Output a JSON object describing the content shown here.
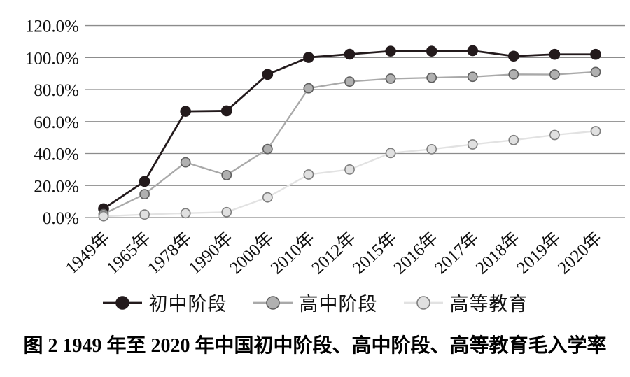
{
  "caption": "图 2  1949 年至 2020 年中国初中阶段、高中阶段、高等教育毛入学率",
  "chart_data": {
    "type": "line",
    "title": "",
    "xlabel": "",
    "ylabel": "",
    "categories": [
      "1949年",
      "1965年",
      "1978年",
      "1990年",
      "2000年",
      "2010年",
      "2012年",
      "2015年",
      "2016年",
      "2017年",
      "2018年",
      "2019年",
      "2020年"
    ],
    "series": [
      {
        "name": "初中阶段",
        "values": [
          5.5,
          22.6,
          66.4,
          66.7,
          89.5,
          100.1,
          102.1,
          104.0,
          104.0,
          104.3,
          100.9,
          102.0,
          102.0
        ],
        "line_color": "#231a1c",
        "marker_fill": "#231a1c",
        "marker_stroke": "#231a1c"
      },
      {
        "name": "高中阶段",
        "values": [
          2.2,
          14.6,
          34.5,
          26.5,
          42.8,
          80.8,
          85.0,
          86.8,
          87.4,
          88.0,
          89.5,
          89.4,
          91.0
        ],
        "line_color": "#a9a9a9",
        "marker_fill": "#b0b0b0",
        "marker_stroke": "#5e5e5e"
      },
      {
        "name": "高等教育",
        "values": [
          0.8,
          1.9,
          2.7,
          3.4,
          12.6,
          26.9,
          30.0,
          40.3,
          42.7,
          45.7,
          48.4,
          51.6,
          54.0
        ],
        "line_color": "#e2e2e2",
        "marker_fill": "#e0e0e0",
        "marker_stroke": "#7f7f7f"
      }
    ],
    "ylim": [
      0,
      120
    ],
    "ytick_step": 20,
    "ytick_labels": [
      "0.0%",
      "20.0%",
      "40.0%",
      "60.0%",
      "80.0%",
      "100.0%",
      "120.0%"
    ],
    "grid": "horizontal-only",
    "gridline_color": "#8c8c8c",
    "legend_position": "bottom"
  }
}
